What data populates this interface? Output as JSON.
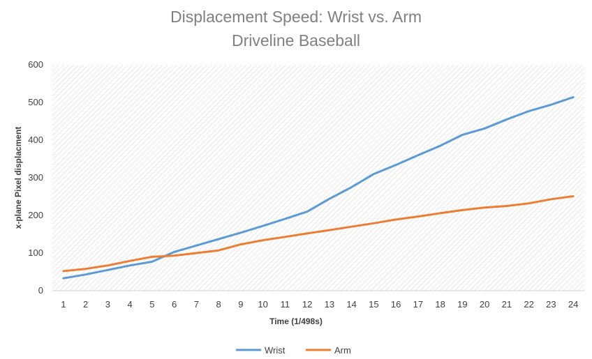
{
  "chart_data": {
    "type": "line",
    "title": "Displacement Speed: Wrist vs. Arm",
    "subtitle": "Driveline Baseball",
    "xlabel": "Time (1/498s)",
    "ylabel": "x-plane Pixel displacment",
    "categories": [
      "1",
      "2",
      "3",
      "4",
      "5",
      "6",
      "7",
      "8",
      "9",
      "10",
      "11",
      "12",
      "13",
      "14",
      "15",
      "16",
      "17",
      "18",
      "19",
      "20",
      "21",
      "22",
      "23",
      "24"
    ],
    "ylim": [
      0,
      600
    ],
    "yticks": [
      "0",
      "100",
      "200",
      "300",
      "400",
      "500",
      "600"
    ],
    "grid": "hatched",
    "legend": "bottom",
    "series": [
      {
        "name": "Wrist",
        "color": "#5B9BD5",
        "values": [
          33,
          43,
          55,
          67,
          77,
          103,
          120,
          137,
          154,
          172,
          191,
          210,
          244,
          275,
          310,
          334,
          360,
          385,
          414,
          431,
          455,
          477,
          494,
          514
        ]
      },
      {
        "name": "Arm",
        "color": "#ED7D31",
        "values": [
          52,
          58,
          67,
          79,
          90,
          93,
          100,
          107,
          123,
          134,
          143,
          152,
          161,
          170,
          179,
          189,
          197,
          206,
          214,
          221,
          225,
          232,
          243,
          251
        ]
      }
    ]
  }
}
